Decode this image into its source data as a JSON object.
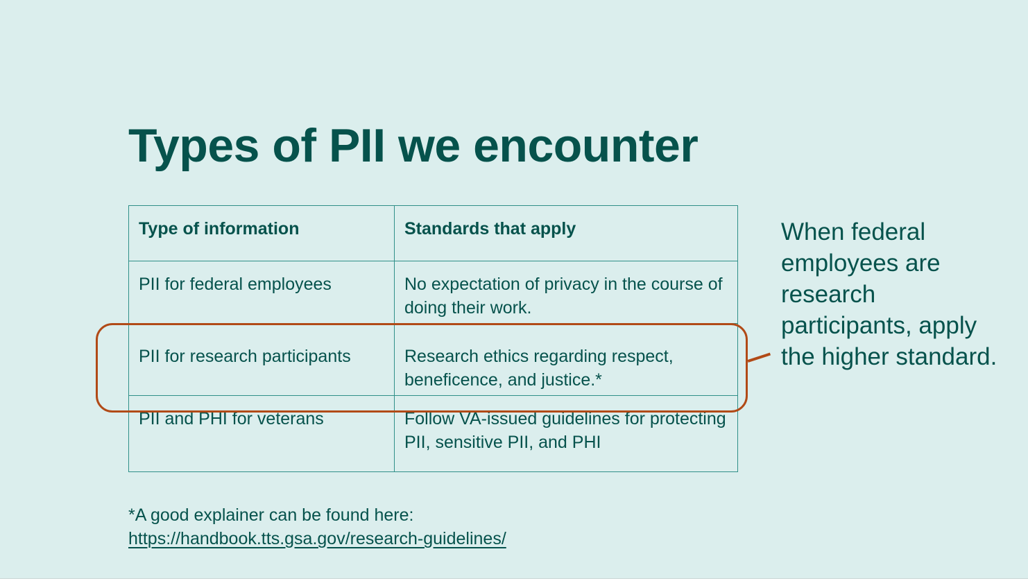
{
  "slide": {
    "title": "Types of PII we encounter",
    "table": {
      "headers": [
        "Type of information",
        "Standards that apply"
      ],
      "rows": [
        [
          "PII for federal employees",
          "No expectation of privacy in the course of doing their work."
        ],
        [
          "PII for research participants",
          "Research ethics regarding respect, beneficence, and justice.*"
        ],
        [
          "PII and PHI for veterans",
          "Follow VA-issued guidelines for protecting PII, sensitive PII, and PHI"
        ]
      ]
    },
    "callout": "When federal employees are research participants, apply the higher standard.",
    "footnote": {
      "text": "*A good explainer can be found here:",
      "link": "https://handbook.tts.gsa.gov/research-guidelines/"
    },
    "colors": {
      "background": "#dbeeed",
      "text": "#06524c",
      "table_border": "#2f8f88",
      "highlight": "#b14a17"
    }
  }
}
